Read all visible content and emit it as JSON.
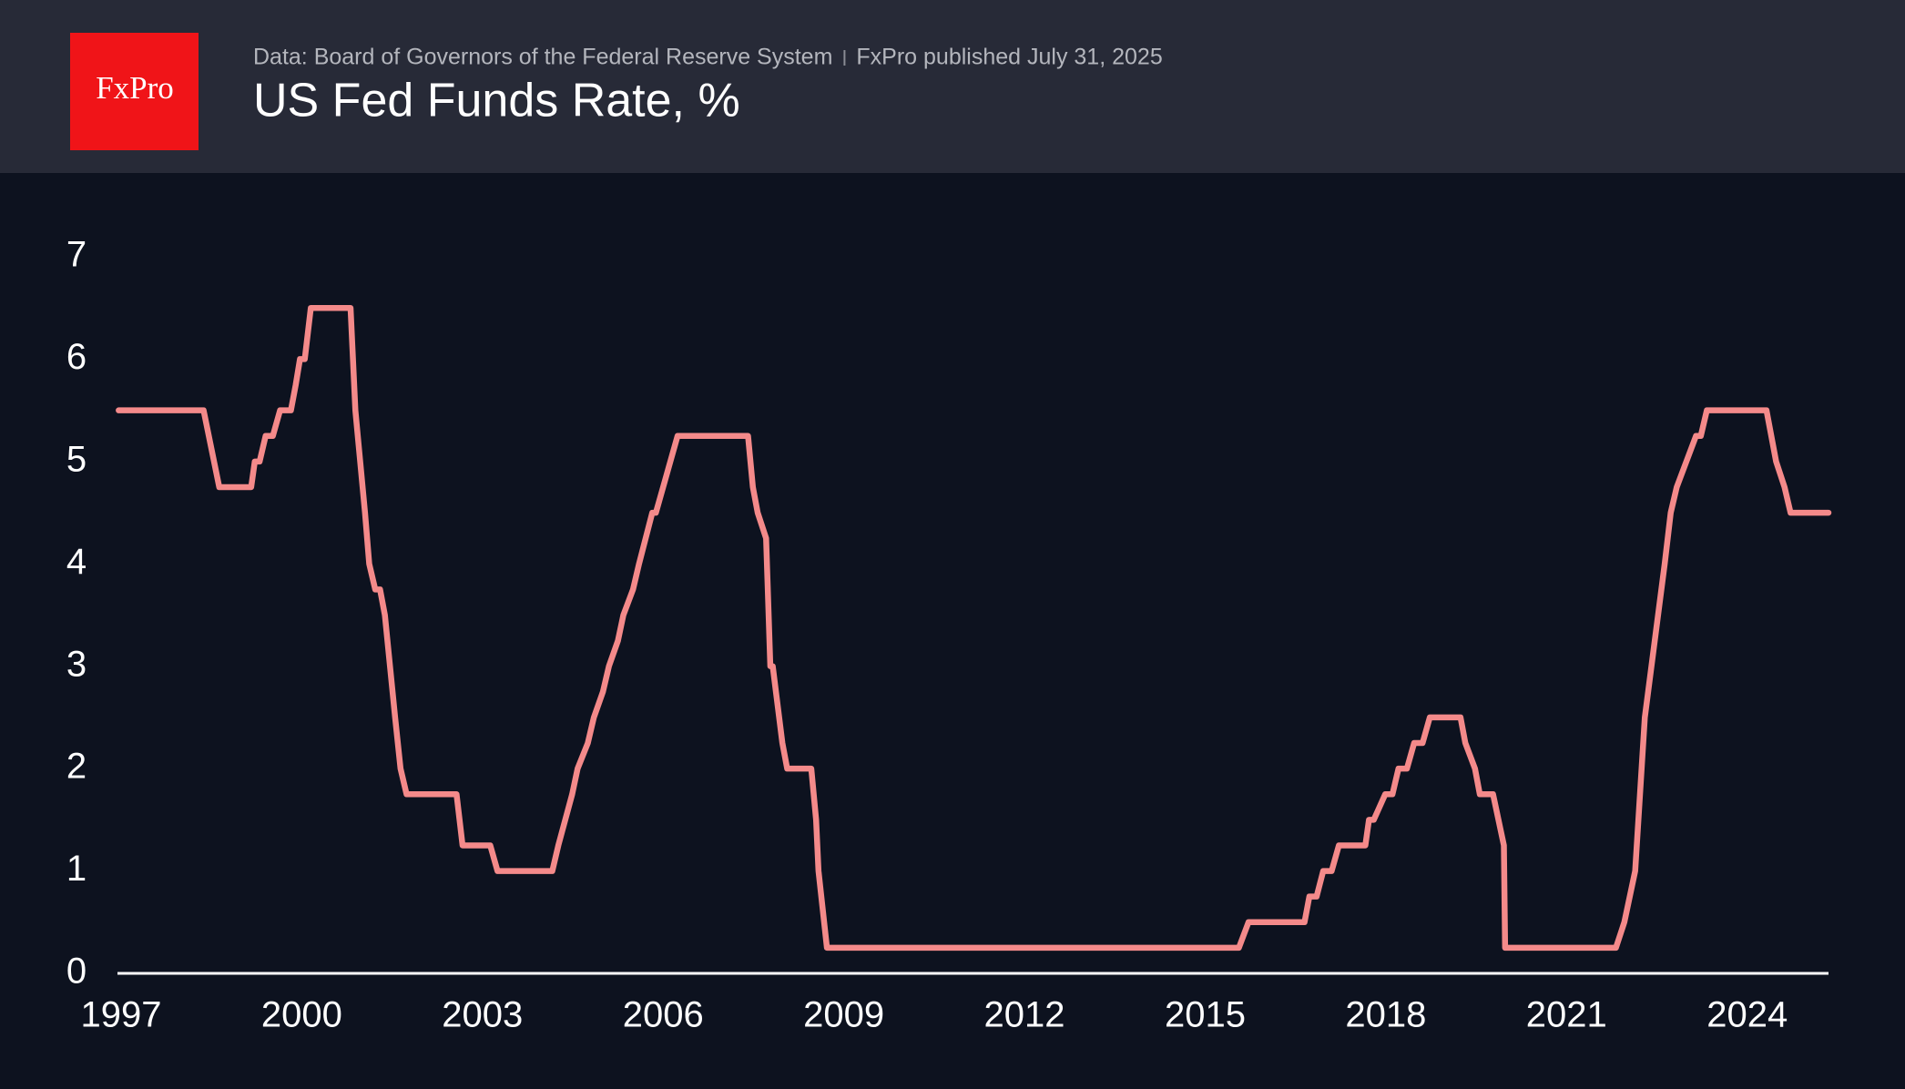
{
  "header": {
    "logo": "FxPro",
    "source": "Data: Board of Governors of the Federal Reserve System",
    "published": "FxPro published July 31, 2025"
  },
  "chart_data": {
    "type": "line",
    "title": "US Fed Funds Rate, %",
    "color": "#f48a8a",
    "xlim": [
      1996.94,
      2025.35
    ],
    "xticks": [
      1997,
      2000,
      2003,
      2006,
      2009,
      2012,
      2015,
      2018,
      2021,
      2024
    ],
    "ylim": [
      0,
      7
    ],
    "yticks": [
      0,
      1,
      2,
      3,
      4,
      5,
      6,
      7
    ],
    "grid": false,
    "x": [
      1996.96,
      1998.37,
      1998.63,
      1999.16,
      1999.22,
      1999.3,
      1999.4,
      1999.52,
      1999.64,
      1999.82,
      1999.9,
      1999.97,
      2000.05,
      2000.15,
      2000.81,
      2000.89,
      2001.05,
      2001.12,
      2001.22,
      2001.3,
      2001.38,
      2001.55,
      2001.64,
      2001.74,
      2002.57,
      2002.67,
      2003.13,
      2003.25,
      2004.16,
      2004.26,
      2004.49,
      2004.58,
      2004.75,
      2004.85,
      2005.0,
      2005.1,
      2005.25,
      2005.34,
      2005.5,
      2005.6,
      2005.82,
      2005.88,
      2006.0,
      2006.12,
      2006.24,
      2007.41,
      2007.49,
      2007.57,
      2007.71,
      2007.78,
      2007.82,
      2007.98,
      2008.06,
      2008.46,
      2008.54,
      2008.58,
      2008.72,
      2015.56,
      2015.72,
      2016.65,
      2016.73,
      2016.85,
      2016.96,
      2017.1,
      2017.22,
      2017.66,
      2017.72,
      2017.8,
      2017.99,
      2018.11,
      2018.21,
      2018.35,
      2018.47,
      2018.61,
      2018.73,
      2019.24,
      2019.32,
      2019.48,
      2019.56,
      2019.78,
      2019.96,
      2019.98,
      2021.82,
      2021.96,
      2022.14,
      2022.3,
      2022.63,
      2022.73,
      2022.83,
      2022.99,
      2023.15,
      2023.23,
      2023.33,
      2024.32,
      2024.48,
      2024.62,
      2024.72,
      2025.35
    ],
    "values": [
      5.5,
      5.5,
      4.75,
      4.75,
      5.0,
      5.0,
      5.25,
      5.25,
      5.5,
      5.5,
      5.75,
      6.0,
      6.0,
      6.5,
      6.5,
      5.5,
      4.5,
      4.0,
      3.75,
      3.75,
      3.5,
      2.5,
      2.0,
      1.75,
      1.75,
      1.25,
      1.25,
      1.0,
      1.0,
      1.25,
      1.75,
      2.0,
      2.25,
      2.5,
      2.75,
      3.0,
      3.25,
      3.5,
      3.75,
      4.0,
      4.5,
      4.5,
      4.75,
      5.0,
      5.25,
      5.25,
      4.75,
      4.5,
      4.25,
      3.0,
      3.0,
      2.25,
      2.0,
      2.0,
      1.5,
      1.0,
      0.25,
      0.25,
      0.5,
      0.5,
      0.75,
      0.75,
      1.0,
      1.0,
      1.25,
      1.25,
      1.5,
      1.5,
      1.75,
      1.75,
      2.0,
      2.0,
      2.25,
      2.25,
      2.5,
      2.5,
      2.25,
      2.0,
      1.75,
      1.75,
      1.25,
      0.25,
      0.25,
      0.5,
      1.0,
      2.5,
      4.0,
      4.5,
      4.75,
      5.0,
      5.25,
      5.25,
      5.5,
      5.5,
      5.0,
      4.75,
      4.5,
      4.5
    ]
  }
}
